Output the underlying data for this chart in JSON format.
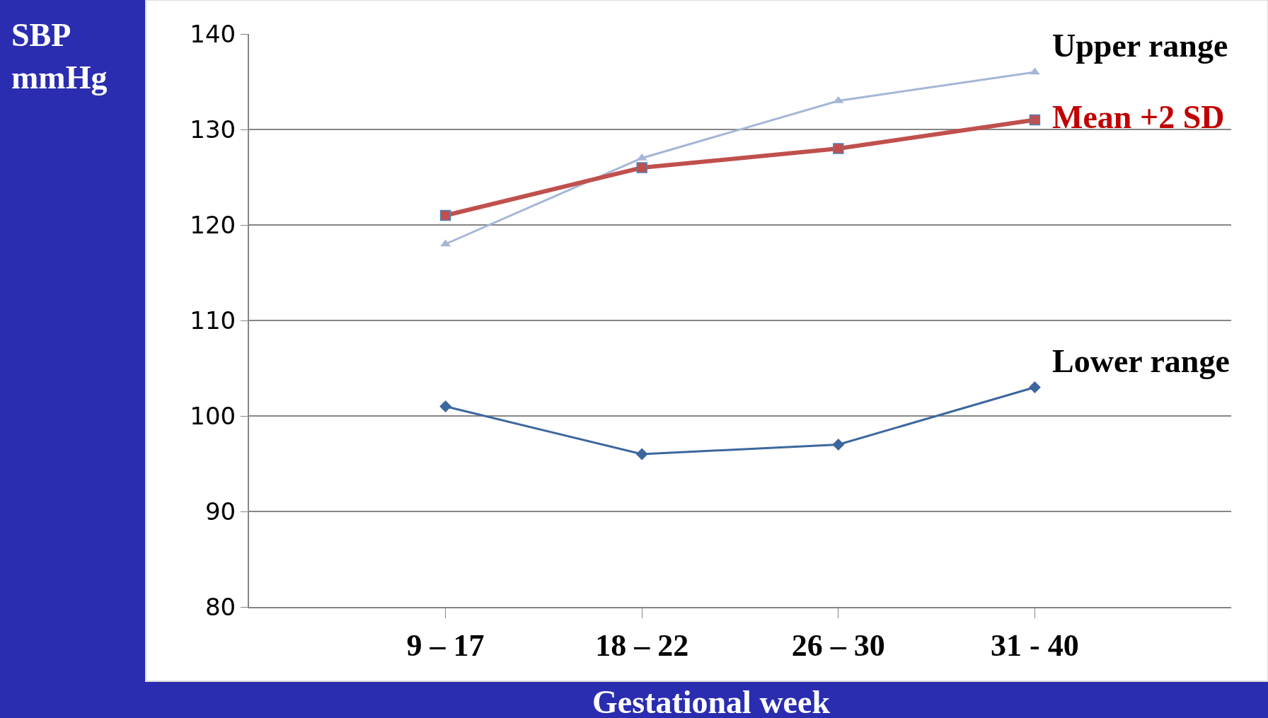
{
  "chart_data": {
    "type": "line",
    "xlabel": "Gestational week",
    "ylabel": "SBP\nmmHg",
    "categories": [
      "9 – 17",
      "18 – 22",
      "26 – 30",
      "31 - 40"
    ],
    "series": [
      {
        "name": "Upper range",
        "color": "#a5b6d6",
        "marker": "triangle",
        "values": [
          118,
          127,
          133,
          136
        ]
      },
      {
        "name": "Mean +2 SD",
        "color": "#c0504d",
        "marker": "square",
        "values": [
          121,
          126,
          128,
          131
        ]
      },
      {
        "name": "Lower range",
        "color": "#3c679e",
        "marker": "diamond",
        "values": [
          101,
          96,
          97,
          103
        ]
      }
    ],
    "ylim": [
      80,
      140
    ],
    "yticks": [
      80,
      90,
      100,
      110,
      120,
      130,
      140
    ],
    "grid": "y",
    "legend": false
  }
}
